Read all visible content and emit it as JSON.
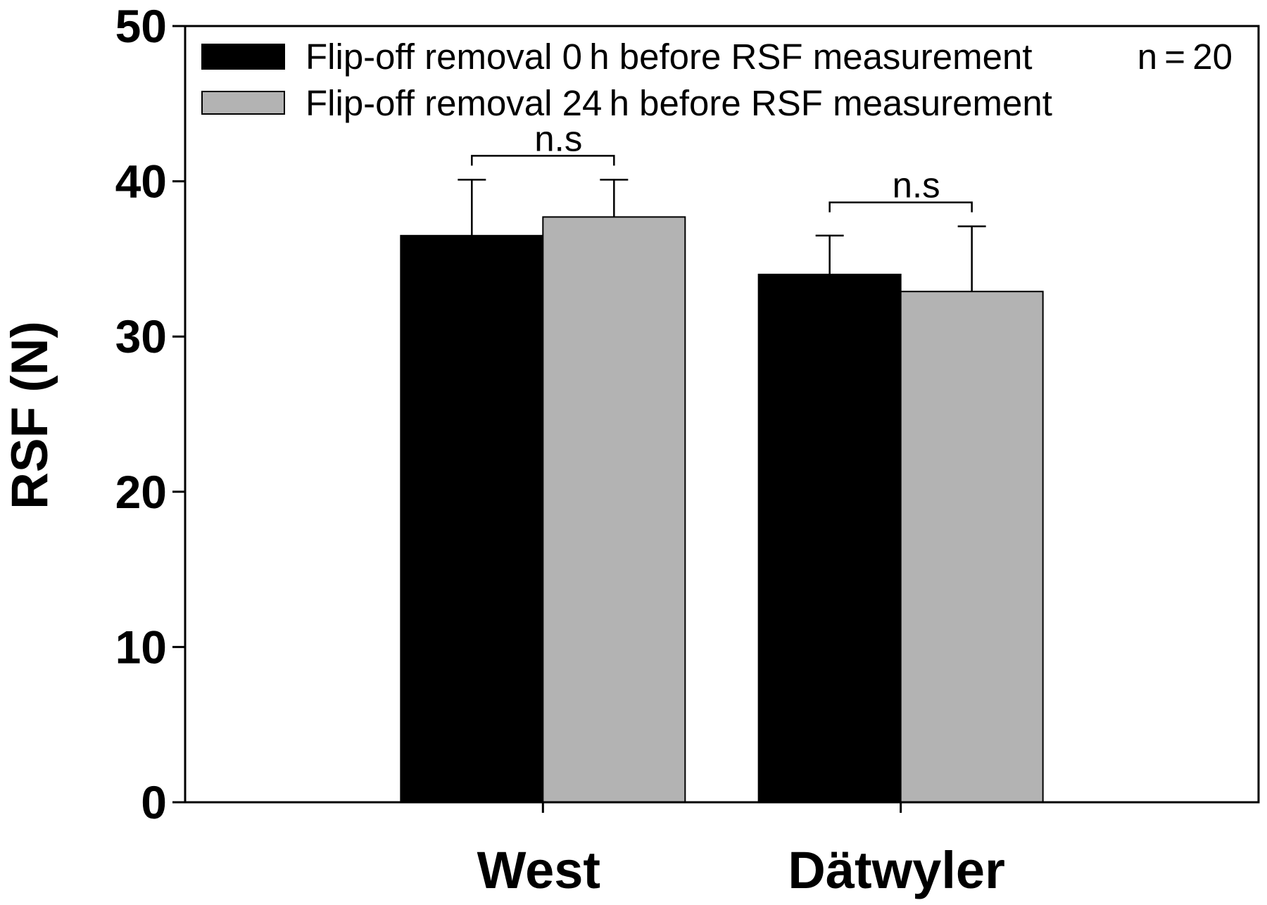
{
  "chart_data": {
    "type": "bar",
    "categories": [
      "West",
      "Dätwyler"
    ],
    "series": [
      {
        "name": "Flip-off removal 0 h before RSF measurement",
        "values": [
          36.5,
          34.0
        ],
        "error_plus": [
          3.6,
          2.5
        ],
        "color": "#000000"
      },
      {
        "name": "Flip-off removal 24 h before RSF measurement",
        "values": [
          37.7,
          32.9
        ],
        "error_plus": [
          2.4,
          4.2
        ],
        "color": "#b3b3b3"
      }
    ],
    "ylabel": "RSF (N)",
    "ylim": [
      0,
      50
    ],
    "yticks": [
      0,
      10,
      20,
      30,
      40,
      50
    ],
    "grid": false,
    "legend_position": "top-left",
    "annotations": [
      {
        "category": "West",
        "text": "n.s"
      },
      {
        "category": "Dätwyler",
        "text": "n.s"
      }
    ],
    "sample_size_note": "n = 20"
  }
}
